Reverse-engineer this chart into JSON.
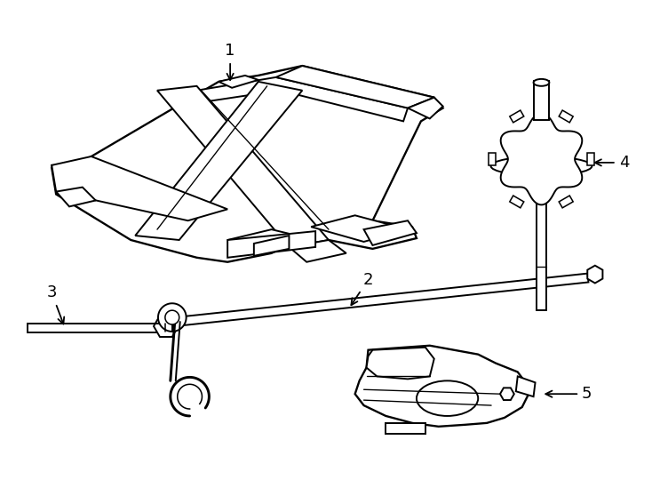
{
  "background_color": "#ffffff",
  "line_color": "#000000",
  "line_width": 1.4,
  "figsize": [
    7.34,
    5.4
  ],
  "dpi": 100
}
